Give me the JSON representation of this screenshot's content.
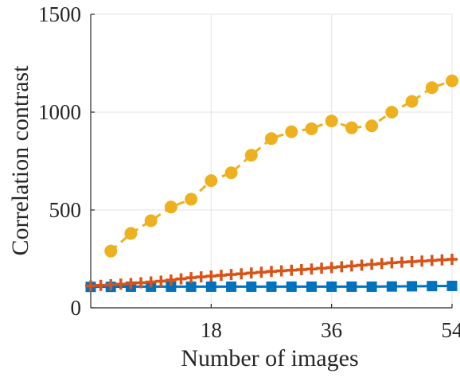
{
  "chart_data": {
    "type": "line",
    "title": "",
    "xlabel": "Number of images",
    "ylabel": "Correlation contrast",
    "xlim": [
      0,
      54
    ],
    "ylim": [
      0,
      1500
    ],
    "xticks": [
      18,
      36,
      54
    ],
    "yticks": [
      0,
      500,
      1000,
      1500
    ],
    "xtick_labels": [
      "18",
      "36",
      "54"
    ],
    "ytick_labels": [
      "0",
      "500",
      "1000",
      "1500"
    ],
    "grid": true,
    "legend": "none",
    "series": [
      {
        "color": "#EDB120",
        "marker": "circle",
        "line_style": "dashed",
        "x": [
          3,
          6,
          9,
          12,
          15,
          18,
          21,
          24,
          27,
          30,
          33,
          36,
          39,
          42,
          45,
          48,
          51,
          54
        ],
        "values": [
          290,
          380,
          445,
          515,
          555,
          650,
          690,
          780,
          865,
          900,
          915,
          955,
          920,
          930,
          1000,
          1055,
          1125,
          1160
        ]
      },
      {
        "color": "#D95319",
        "marker": "plus",
        "line_style": "solid",
        "x": [
          0,
          1.5,
          3,
          4.5,
          6,
          7.5,
          9,
          10.5,
          12,
          13.5,
          15,
          16.5,
          18,
          19.5,
          21,
          22.5,
          24,
          25.5,
          27,
          28.5,
          30,
          31.5,
          33,
          34.5,
          36,
          37.5,
          39,
          40.5,
          42,
          43.5,
          45,
          46.5,
          48,
          49.5,
          51,
          52.5,
          54
        ],
        "values": [
          112,
          115,
          118,
          121,
          124,
          128,
          132,
          136,
          142,
          148,
          154,
          158,
          162,
          166,
          170,
          174,
          178,
          182,
          186,
          189,
          192,
          195,
          198,
          202,
          206,
          210,
          214,
          218,
          222,
          226,
          230,
          233,
          236,
          239,
          242,
          245,
          248
        ]
      },
      {
        "color": "#0072BD",
        "marker": "square",
        "line_style": "solid",
        "x": [
          0,
          3,
          6,
          9,
          12,
          15,
          18,
          21,
          24,
          27,
          30,
          33,
          36,
          39,
          42,
          45,
          48,
          51,
          54
        ],
        "values": [
          107,
          107,
          108,
          108,
          108,
          108,
          108,
          108,
          108,
          108,
          108,
          108,
          108,
          108,
          108,
          109,
          110,
          111,
          112
        ]
      }
    ]
  }
}
